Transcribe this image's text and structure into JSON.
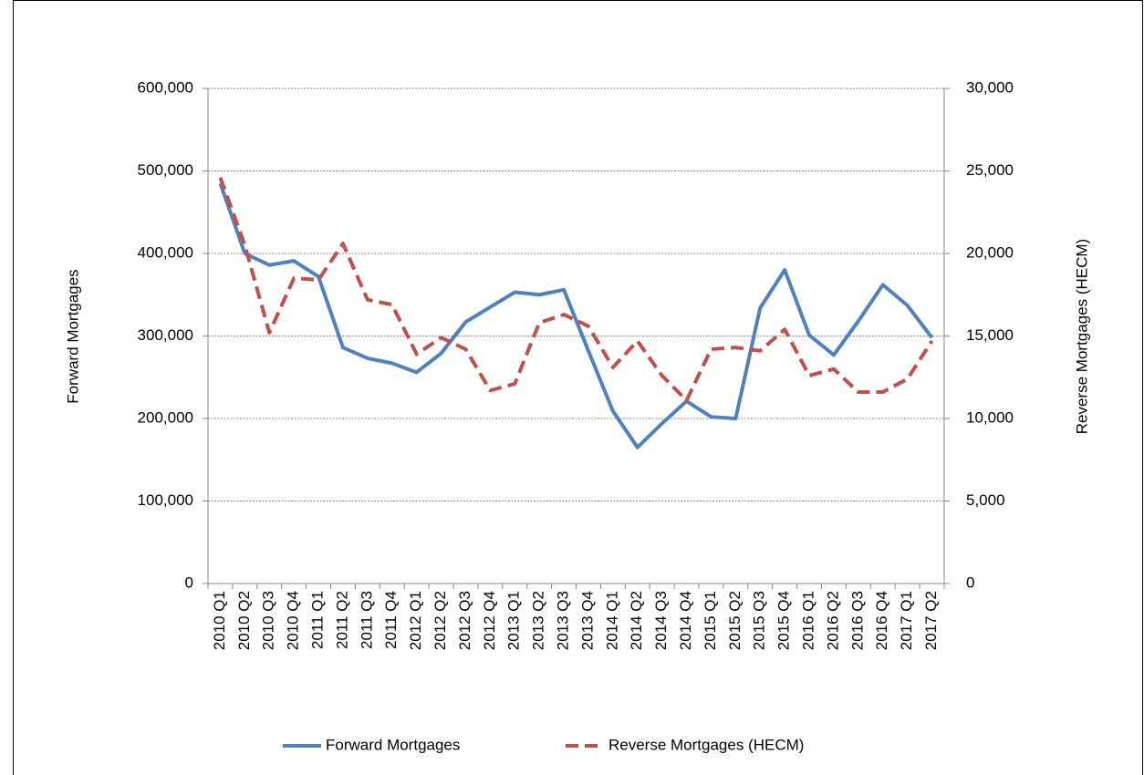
{
  "chart_data": {
    "type": "line",
    "categories": [
      "2010 Q1",
      "2010 Q2",
      "2010 Q3",
      "2010 Q4",
      "2011 Q1",
      "2011 Q2",
      "2011 Q3",
      "2011 Q4",
      "2012 Q1",
      "2012 Q2",
      "2012 Q3",
      "2012 Q4",
      "2013 Q1",
      "2013 Q2",
      "2013 Q3",
      "2013 Q4",
      "2014 Q1",
      "2014 Q2",
      "2014 Q3",
      "2014 Q4",
      "2015 Q1",
      "2015 Q2",
      "2015 Q3",
      "2015 Q4",
      "2016 Q1",
      "2016 Q2",
      "2016 Q3",
      "2016 Q4",
      "2017 Q1",
      "2017 Q2"
    ],
    "y_label": "Forward Mortgages",
    "y2_label": "Reverse Mortgages (HECM)",
    "ylim": [
      0,
      600000
    ],
    "yticks": [
      0,
      {
        "value": 100000,
        "label": "100,000"
      },
      {
        "value": 200000,
        "label": "200,000"
      },
      {
        "value": 300000,
        "label": "300,000"
      },
      {
        "value": 400000,
        "label": "400,000"
      },
      {
        "value": 500000,
        "label": "500,000"
      },
      {
        "value": 600000,
        "label": "600,000"
      }
    ],
    "y2lim": [
      0,
      30000
    ],
    "y2ticks": [
      0,
      {
        "value": 5000,
        "label": "5,000"
      },
      {
        "value": 10000,
        "label": "10,000"
      },
      {
        "value": 15000,
        "label": "15,000"
      },
      {
        "value": 20000,
        "label": "20,000"
      },
      {
        "value": 25000,
        "label": "25,000"
      },
      {
        "value": 30000,
        "label": "30,000"
      }
    ],
    "grid": true,
    "legend": "bottom",
    "series": [
      {
        "name": "Forward Mortgages",
        "color": "#4f81bd",
        "dashed": false,
        "values": [
          485000,
          400000,
          386000,
          391000,
          372000,
          286000,
          273000,
          267000,
          256000,
          279000,
          317000,
          335000,
          353000,
          350000,
          356000,
          282000,
          209000,
          165000,
          194000,
          221000,
          202000,
          200000,
          334000,
          380000,
          301000,
          277000,
          318000,
          362000,
          337000,
          298000
        ]
      },
      {
        "name": "Reverse Mortgages (HECM)",
        "color": "#c0504d",
        "dashed": true,
        "axis": "y2",
        "values": [
          24600,
          20500,
          15200,
          18500,
          18400,
          20600,
          17200,
          16900,
          13900,
          14900,
          14200,
          11700,
          12100,
          15800,
          16300,
          15600,
          13100,
          14700,
          12600,
          11100,
          14200,
          14300,
          14100,
          15400,
          12600,
          13000,
          11600,
          11600,
          12400,
          14700
        ]
      }
    ]
  }
}
